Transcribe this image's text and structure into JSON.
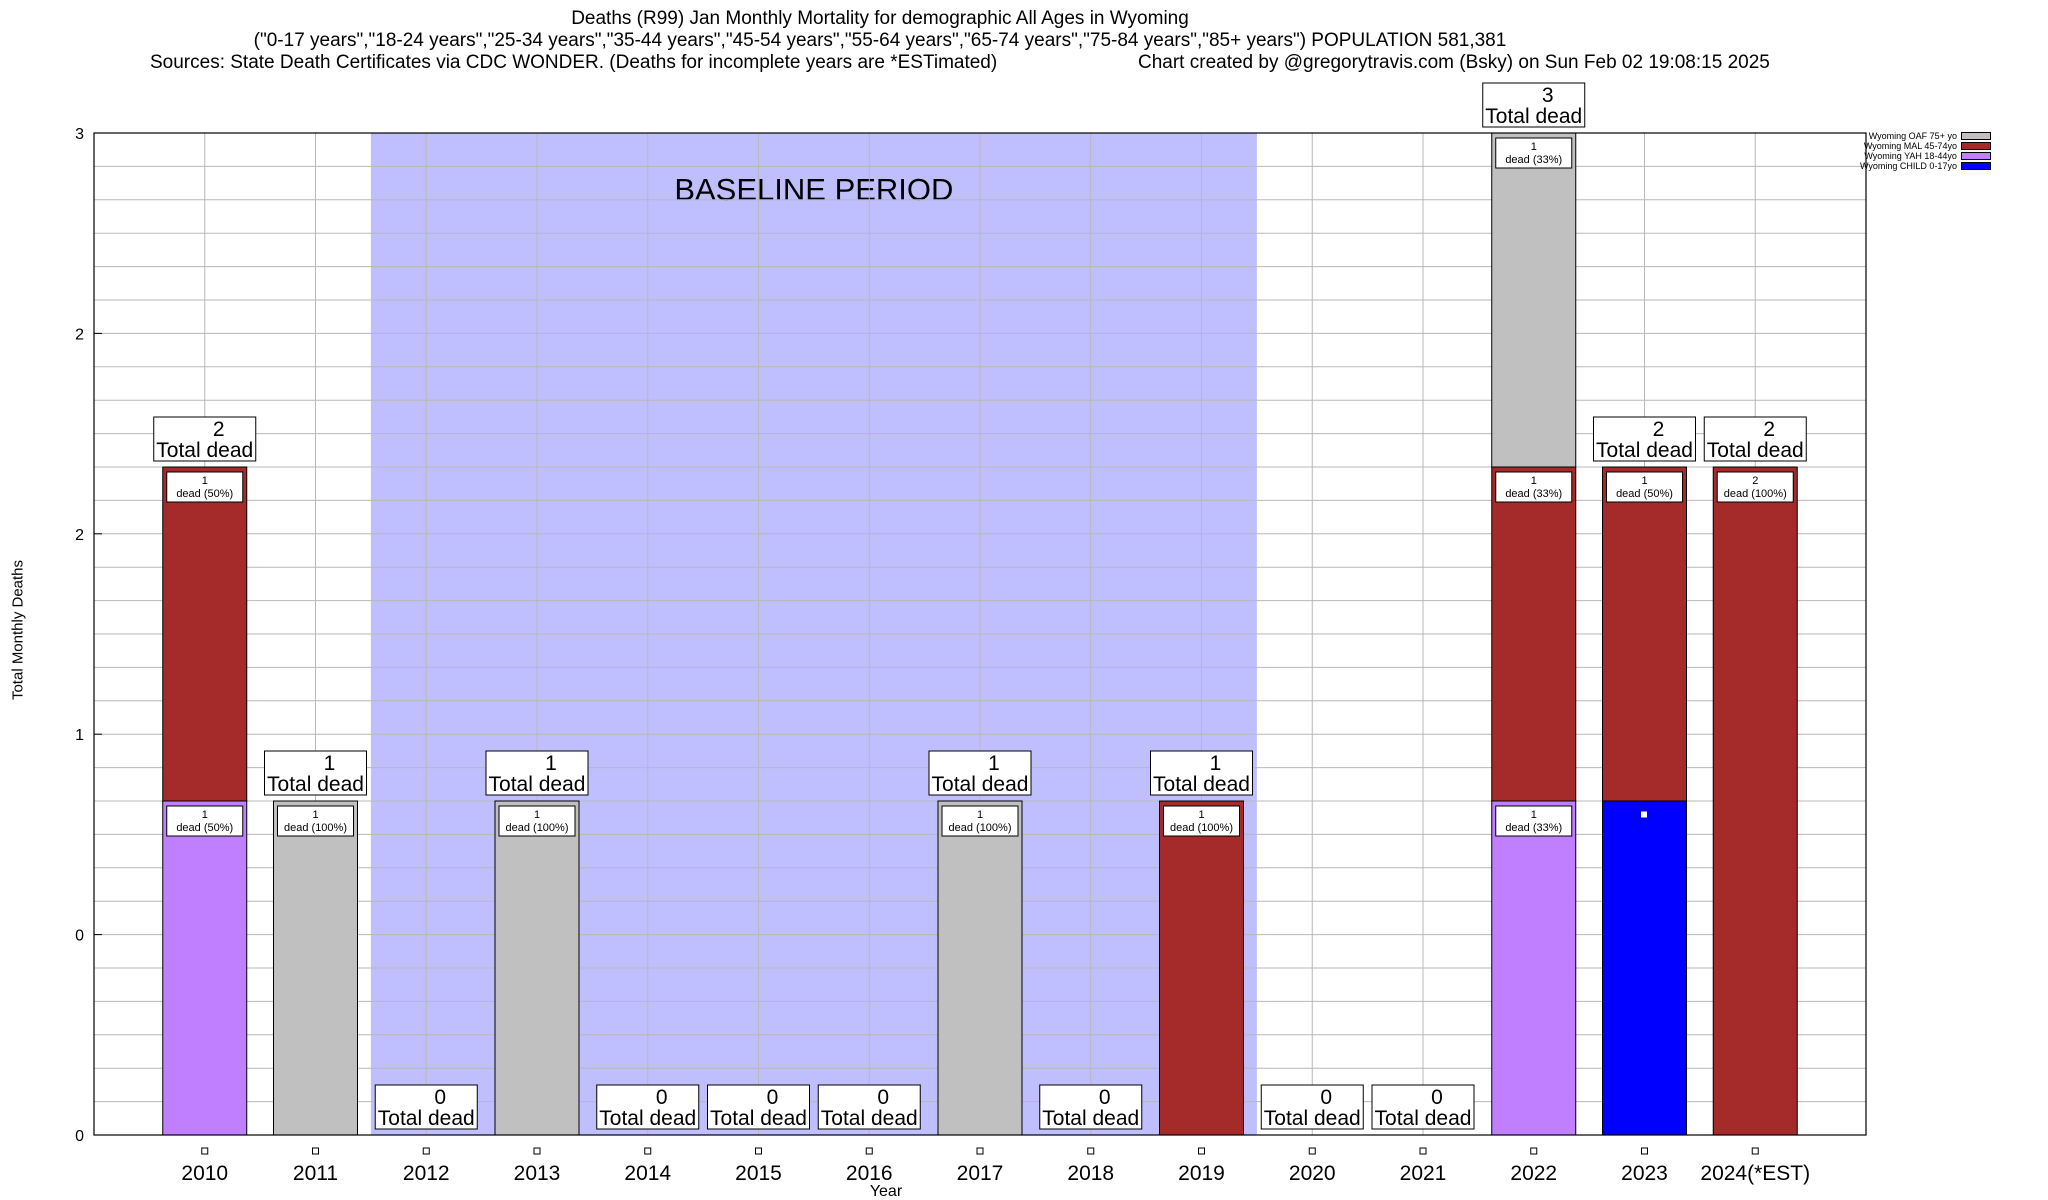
{
  "header": {
    "title_line1": "Deaths (R99) Jan Monthly Mortality for demographic All Ages in Wyoming",
    "title_line2": "(\"0-17 years\",\"18-24 years\",\"25-34 years\",\"35-44 years\",\"45-54 years\",\"55-64 years\",\"65-74 years\",\"75-84 years\",\"85+ years\") POPULATION 581,381",
    "sources": "Sources: State Death Certificates via CDC WONDER. (Deaths for incomplete years are *ESTimated)",
    "credit": "Chart created by @gregorytravis.com (Bsky) on Sun Feb 02 19:08:15 2025"
  },
  "chart_data": {
    "type": "bar",
    "stacked": true,
    "xlabel": "Year",
    "ylabel": "Total Monthly Deaths",
    "ylim": [
      0,
      3
    ],
    "grid": true,
    "legend_position": "top-right",
    "y_tick_labels": [
      "0",
      "0",
      "1",
      "2",
      "2",
      "3"
    ],
    "categories": [
      "2010",
      "2011",
      "2012",
      "2013",
      "2014",
      "2015",
      "2016",
      "2017",
      "2018",
      "2019",
      "2020",
      "2021",
      "2022",
      "2023",
      "2024(*EST)"
    ],
    "totals": [
      2,
      1,
      0,
      1,
      0,
      0,
      0,
      1,
      0,
      1,
      0,
      0,
      3,
      2,
      2
    ],
    "total_label_suffix": "Total dead",
    "baseline": {
      "label": "BASELINE PERIOD",
      "from": "2012",
      "to": "2019",
      "color": "#bfbfff"
    },
    "series": [
      {
        "name": "Wyoming CHILD 0-17yo",
        "color": "#0000ff",
        "values": [
          0,
          0,
          0,
          0,
          0,
          0,
          0,
          0,
          0,
          0,
          0,
          0,
          0,
          1,
          0
        ],
        "labels": [
          "",
          "",
          "",
          "",
          "",
          "",
          "",
          "",
          "",
          "",
          "",
          "",
          "",
          "",
          ""
        ]
      },
      {
        "name": "Wyoming YAH 18-44yo",
        "color": "#bf7fff",
        "values": [
          1,
          0,
          0,
          0,
          0,
          0,
          0,
          0,
          0,
          0,
          0,
          0,
          1,
          0,
          0
        ],
        "labels": [
          "1\ndead (50%)",
          "",
          "",
          "",
          "",
          "",
          "",
          "",
          "",
          "",
          "",
          "",
          "1\ndead (33%)",
          "",
          ""
        ]
      },
      {
        "name": "Wyoming MAL 45-74yo",
        "color": "#a52a2a",
        "values": [
          1,
          0,
          0,
          0,
          0,
          0,
          0,
          0,
          0,
          1,
          0,
          0,
          1,
          1,
          2
        ],
        "labels": [
          "1\ndead (50%)",
          "",
          "",
          "",
          "",
          "",
          "",
          "",
          "",
          "1\ndead (100%)",
          "",
          "",
          "1\ndead (33%)",
          "1\ndead (50%)",
          "2\ndead (100%)"
        ]
      },
      {
        "name": "Wyoming OAF 75+ yo",
        "color": "#c0c0c0",
        "values": [
          0,
          1,
          0,
          1,
          0,
          0,
          0,
          1,
          0,
          0,
          0,
          0,
          1,
          0,
          0
        ],
        "labels": [
          "",
          "1\ndead (100%)",
          "",
          "1\ndead (100%)",
          "",
          "",
          "",
          "1\ndead (100%)",
          "",
          "",
          "",
          "",
          "1\ndead (33%)",
          "",
          ""
        ]
      }
    ]
  }
}
